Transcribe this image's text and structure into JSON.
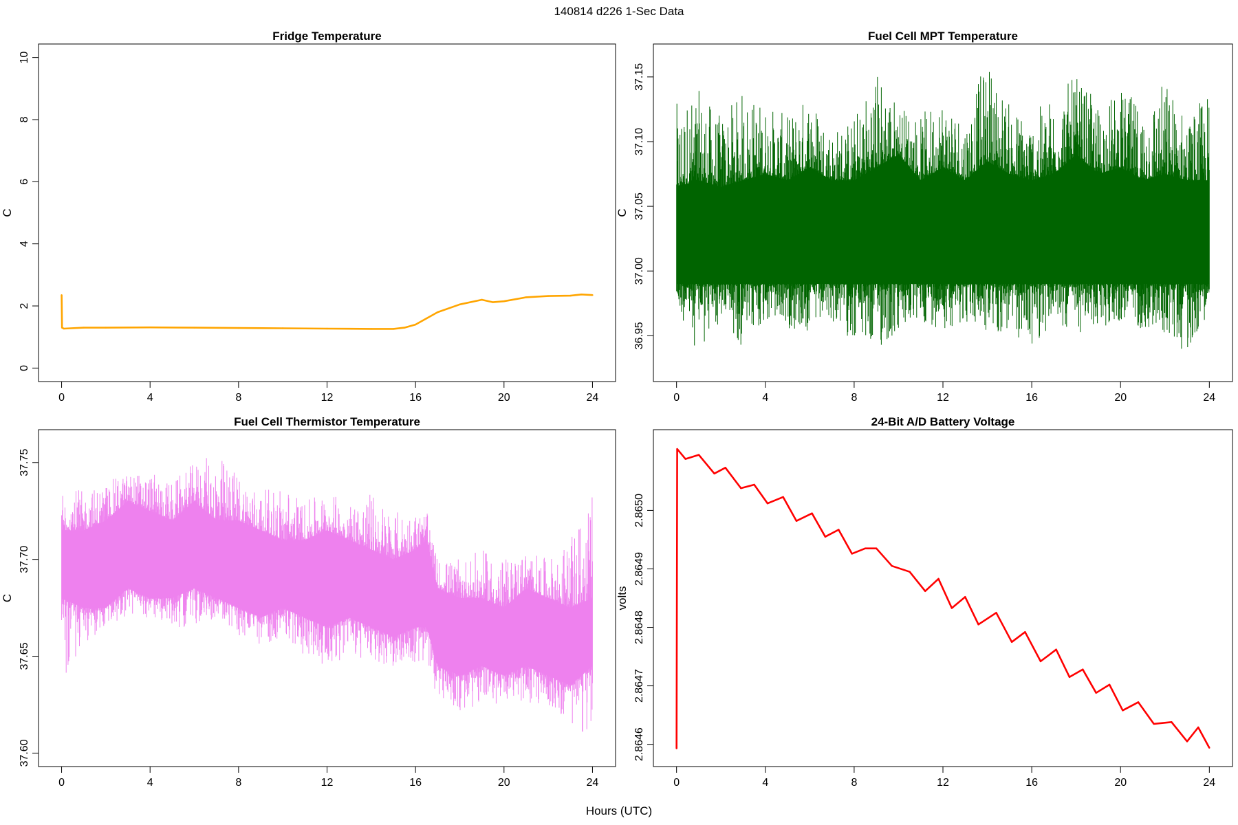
{
  "figure": {
    "title": "140814   d226   1-Sec Data",
    "xlabel": "Hours (UTC)"
  },
  "chart_data": [
    {
      "type": "line",
      "title": "Fridge Temperature",
      "xlabel": "",
      "ylabel": "C",
      "xlim": [
        0,
        24
      ],
      "ylim": [
        0,
        10
      ],
      "xticks": [
        0,
        4,
        8,
        12,
        16,
        20,
        24
      ],
      "yticks": [
        0,
        2,
        4,
        6,
        8,
        10
      ],
      "ytick_labels": [
        "0",
        "2",
        "4",
        "6",
        "8",
        "10"
      ],
      "color": "#FFA500",
      "band": false,
      "x": [
        0,
        0.02,
        0.1,
        1,
        2,
        4,
        6,
        8,
        10,
        12,
        14,
        15,
        15.5,
        16,
        16.5,
        17,
        18,
        19,
        19.5,
        20,
        21,
        22,
        23,
        23.5,
        24
      ],
      "y": [
        2.35,
        1.3,
        1.27,
        1.3,
        1.3,
        1.31,
        1.3,
        1.29,
        1.28,
        1.27,
        1.26,
        1.26,
        1.3,
        1.4,
        1.6,
        1.8,
        2.05,
        2.2,
        2.12,
        2.15,
        2.28,
        2.32,
        2.33,
        2.37,
        2.35
      ]
    },
    {
      "type": "line",
      "title": "Fuel Cell MPT Temperature",
      "xlabel": "",
      "ylabel": "C",
      "xlim": [
        0,
        24
      ],
      "ylim": [
        36.925,
        37.165
      ],
      "xticks": [
        0,
        4,
        8,
        12,
        16,
        20,
        24
      ],
      "yticks": [
        36.95,
        37.0,
        37.05,
        37.1,
        37.15
      ],
      "ytick_labels": [
        "36.95",
        "37.00",
        "37.05",
        "37.10",
        "37.15"
      ],
      "color": "#006400",
      "band": true,
      "x": [
        0,
        1,
        2,
        3,
        4,
        5,
        6,
        7,
        8,
        9,
        10,
        11,
        12,
        13,
        14,
        15,
        16,
        17,
        18,
        19,
        20,
        21,
        22,
        23,
        24
      ],
      "core_low": [
        36.99,
        36.99,
        36.99,
        36.99,
        36.99,
        36.99,
        36.99,
        36.99,
        36.99,
        36.99,
        36.99,
        36.99,
        36.99,
        36.99,
        36.99,
        36.99,
        36.99,
        36.99,
        36.99,
        36.99,
        36.99,
        36.99,
        36.99,
        36.99,
        36.99
      ],
      "core_high": [
        37.065,
        37.07,
        37.065,
        37.07,
        37.075,
        37.07,
        37.08,
        37.07,
        37.07,
        37.08,
        37.09,
        37.07,
        37.08,
        37.07,
        37.085,
        37.075,
        37.07,
        37.075,
        37.09,
        37.075,
        37.08,
        37.07,
        37.075,
        37.07,
        37.07
      ],
      "min": [
        36.97,
        36.935,
        36.96,
        36.94,
        36.96,
        36.955,
        36.95,
        36.96,
        36.945,
        36.935,
        36.95,
        36.96,
        36.955,
        36.96,
        36.95,
        36.95,
        36.94,
        36.96,
        36.95,
        36.955,
        36.96,
        36.955,
        36.95,
        36.935,
        36.97
      ],
      "max": [
        37.13,
        37.14,
        37.12,
        37.14,
        37.13,
        37.12,
        37.14,
        37.11,
        37.12,
        37.16,
        37.13,
        37.12,
        37.14,
        37.12,
        37.165,
        37.13,
        37.12,
        37.14,
        37.15,
        37.13,
        37.14,
        37.13,
        37.15,
        37.12,
        37.14
      ]
    },
    {
      "type": "line",
      "title": "Fuel Cell Thermistor Temperature",
      "xlabel": "",
      "ylabel": "C",
      "xlim": [
        0,
        24
      ],
      "ylim": [
        37.6,
        37.76
      ],
      "xticks": [
        0,
        4,
        8,
        12,
        16,
        20,
        24
      ],
      "yticks": [
        37.6,
        37.65,
        37.7,
        37.75
      ],
      "ytick_labels": [
        "37.60",
        "37.65",
        "37.70",
        "37.75"
      ],
      "color": "#EE82EE",
      "band": true,
      "x": [
        0,
        1,
        2,
        3,
        4,
        5,
        6,
        7,
        8,
        9,
        10,
        11,
        12,
        13,
        14,
        15,
        16,
        16.5,
        17,
        18,
        19,
        20,
        21,
        22,
        23,
        24
      ],
      "core_low": [
        37.68,
        37.675,
        37.675,
        37.685,
        37.68,
        37.68,
        37.685,
        37.68,
        37.675,
        37.67,
        37.675,
        37.67,
        37.665,
        37.67,
        37.665,
        37.66,
        37.665,
        37.665,
        37.645,
        37.64,
        37.645,
        37.64,
        37.645,
        37.64,
        37.635,
        37.645
      ],
      "core_high": [
        37.715,
        37.715,
        37.72,
        37.73,
        37.725,
        37.72,
        37.73,
        37.72,
        37.72,
        37.715,
        37.71,
        37.71,
        37.715,
        37.71,
        37.705,
        37.7,
        37.705,
        37.71,
        37.685,
        37.68,
        37.68,
        37.675,
        37.685,
        37.68,
        37.675,
        37.68
      ],
      "min": [
        37.635,
        37.655,
        37.665,
        37.67,
        37.67,
        37.665,
        37.665,
        37.67,
        37.66,
        37.655,
        37.66,
        37.65,
        37.645,
        37.65,
        37.645,
        37.645,
        37.645,
        37.64,
        37.63,
        37.62,
        37.625,
        37.625,
        37.625,
        37.625,
        37.615,
        37.605
      ],
      "max": [
        37.74,
        37.735,
        37.74,
        37.745,
        37.745,
        37.74,
        37.75,
        37.755,
        37.745,
        37.735,
        37.74,
        37.73,
        37.735,
        37.73,
        37.735,
        37.725,
        37.725,
        37.725,
        37.7,
        37.7,
        37.705,
        37.7,
        37.705,
        37.7,
        37.71,
        37.735
      ]
    },
    {
      "type": "line",
      "title": "24-Bit A/D Battery Voltage",
      "xlabel": "",
      "ylabel": "volts",
      "xlim": [
        0,
        24
      ],
      "ylim": [
        2.864585,
        2.865115
      ],
      "xticks": [
        0,
        4,
        8,
        12,
        16,
        20,
        24
      ],
      "yticks": [
        2.8646,
        2.8647,
        2.8648,
        2.8649,
        2.865
      ],
      "ytick_labels": [
        "2.8646",
        "2.8647",
        "2.8648",
        "2.8649",
        "2.8650"
      ],
      "color": "#FF0000",
      "band": false,
      "x": [
        0,
        0.03,
        0.4,
        1.0,
        1.7,
        2.2,
        2.9,
        3.5,
        4.1,
        4.8,
        5.4,
        6.1,
        6.7,
        7.3,
        7.9,
        8.5,
        9.0,
        9.7,
        10.5,
        11.2,
        11.8,
        12.4,
        13.0,
        13.6,
        14.4,
        15.1,
        15.7,
        16.4,
        17.1,
        17.7,
        18.3,
        18.9,
        19.5,
        20.1,
        20.8,
        21.5,
        22.3,
        23.0,
        23.5,
        24.0
      ],
      "y": [
        2.864593,
        2.865105,
        2.865088,
        2.865095,
        2.865063,
        2.865073,
        2.865038,
        2.865044,
        2.865012,
        2.865023,
        2.864982,
        2.864995,
        2.864955,
        2.864967,
        2.864926,
        2.864935,
        2.864935,
        2.864905,
        2.864895,
        2.864862,
        2.864883,
        2.864833,
        2.864852,
        2.864805,
        2.864825,
        2.864775,
        2.864792,
        2.864742,
        2.864762,
        2.864715,
        2.864728,
        2.864688,
        2.864702,
        2.864658,
        2.864672,
        2.864635,
        2.864638,
        2.864605,
        2.864629,
        2.864594
      ]
    }
  ]
}
